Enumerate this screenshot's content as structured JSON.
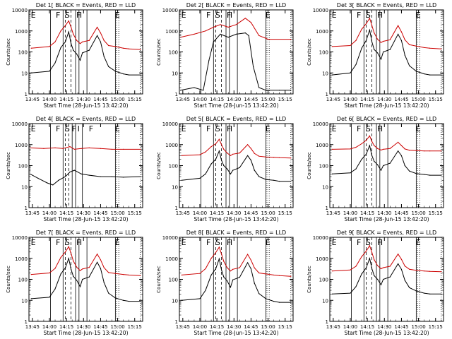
{
  "figure": {
    "xlabel": "Start Time (28-Jun-15 13:42:20)",
    "ylabel": "Counts/sec",
    "xticks": [
      "13:45",
      "14:00",
      "14:15",
      "14:30",
      "14:45",
      "15:00",
      "15:15"
    ],
    "yticks": [
      "1",
      "10",
      "100",
      "1000",
      "10000"
    ]
  },
  "chart_data": [
    {
      "type": "line",
      "title": "Det 1[ BLACK = Events, RED = LLD",
      "xlabel": "Start Time (28-Jun-15 13:42:20)",
      "ylabel": "Counts/sec",
      "yscale": "log",
      "ylim": [
        1,
        10000
      ],
      "xlim": [
        "13:42",
        "15:22"
      ],
      "interval_labels": [
        "E",
        "F",
        "S",
        "F",
        "I",
        "E"
      ],
      "series": [
        {
          "color": "#000000",
          "x": [
            "13:44",
            "14:00",
            "14:05",
            "14:10",
            "14:14",
            "14:17",
            "14:19",
            "14:21",
            "14:24",
            "14:27",
            "14:29",
            "14:35",
            "14:42",
            "14:45",
            "14:48",
            "14:52",
            "14:58",
            "15:05",
            "15:10",
            "15:20"
          ],
          "values": [
            10,
            12,
            30,
            160,
            300,
            900,
            250,
            120,
            80,
            40,
            90,
            120,
            600,
            300,
            60,
            20,
            12,
            9,
            8,
            8
          ]
        },
        {
          "color": "#cc0000",
          "x": [
            "13:44",
            "14:00",
            "14:05",
            "14:10",
            "14:14",
            "14:17",
            "14:19",
            "14:21",
            "14:24",
            "14:27",
            "14:29",
            "14:35",
            "14:42",
            "14:45",
            "14:48",
            "14:52",
            "14:58",
            "15:05",
            "15:10",
            "15:20"
          ],
          "values": [
            150,
            180,
            300,
            1000,
            1800,
            3000,
            1500,
            700,
            350,
            250,
            300,
            350,
            1500,
            800,
            350,
            200,
            180,
            150,
            140,
            130
          ]
        }
      ]
    },
    {
      "type": "line",
      "title": "Det 2[ BLACK = Events, RED = LLD",
      "xlabel": "Start Time (28-Jun-15 13:42:20)",
      "ylabel": "Counts/sec",
      "yscale": "log",
      "ylim": [
        1,
        10000
      ],
      "xlim": [
        "13:42",
        "15:22"
      ],
      "interval_labels": [
        "E",
        "F",
        "S",
        "F",
        "I",
        "E"
      ],
      "series": [
        {
          "color": "#000000",
          "x": [
            "13:43",
            "13:55",
            "14:03",
            "14:08",
            "14:12",
            "14:18",
            "14:25",
            "14:32",
            "14:40",
            "14:43",
            "14:47",
            "14:52",
            "14:58",
            "15:10",
            "15:20"
          ],
          "values": [
            1.5,
            2,
            1.5,
            40,
            300,
            700,
            500,
            700,
            800,
            600,
            20,
            2,
            1.5,
            1.5,
            1.5
          ]
        },
        {
          "color": "#cc0000",
          "x": [
            "13:43",
            "13:55",
            "14:05",
            "14:12",
            "14:18",
            "14:25",
            "14:32",
            "14:40",
            "14:45",
            "14:52",
            "15:00",
            "15:20"
          ],
          "values": [
            500,
            700,
            1000,
            1500,
            2000,
            1500,
            2000,
            4000,
            2500,
            600,
            400,
            400
          ]
        }
      ]
    },
    {
      "type": "line",
      "title": "Det 3[ BLACK = Events, RED = LLD",
      "xlabel": "Start Time (28-Jun-15 13:42:20)",
      "ylabel": "Counts/sec",
      "yscale": "log",
      "ylim": [
        1,
        10000
      ],
      "xlim": [
        "13:42",
        "15:22"
      ],
      "interval_labels": [
        "E",
        "F",
        "S",
        "F",
        "I",
        "E"
      ],
      "series": [
        {
          "color": "#000000",
          "x": [
            "13:44",
            "14:00",
            "14:05",
            "14:10",
            "14:14",
            "14:17",
            "14:19",
            "14:21",
            "14:24",
            "14:27",
            "14:29",
            "14:35",
            "14:42",
            "14:45",
            "14:48",
            "14:52",
            "14:58",
            "15:05",
            "15:10",
            "15:20"
          ],
          "values": [
            8,
            10,
            25,
            150,
            350,
            1100,
            300,
            130,
            90,
            45,
            100,
            130,
            700,
            350,
            70,
            22,
            12,
            9,
            8,
            8
          ]
        },
        {
          "color": "#cc0000",
          "x": [
            "13:44",
            "14:00",
            "14:05",
            "14:10",
            "14:14",
            "14:17",
            "14:19",
            "14:21",
            "14:24",
            "14:27",
            "14:29",
            "14:35",
            "14:42",
            "14:45",
            "14:48",
            "14:52",
            "14:58",
            "15:05",
            "15:10",
            "15:20"
          ],
          "values": [
            180,
            200,
            350,
            1200,
            2200,
            4000,
            1800,
            800,
            400,
            280,
            320,
            380,
            1800,
            900,
            380,
            220,
            190,
            160,
            150,
            140
          ]
        }
      ]
    },
    {
      "type": "line",
      "title": "Det 4[ BLACK = Events, RED = LLD",
      "xlabel": "Start Time (28-Jun-15 13:42:20)",
      "ylabel": "Counts/sec",
      "yscale": "log",
      "ylim": [
        1,
        10000
      ],
      "xlim": [
        "13:42",
        "15:22"
      ],
      "interval_labels": [
        "E",
        "F",
        "S",
        "F",
        "I",
        "F",
        "E"
      ],
      "series": [
        {
          "color": "#000000",
          "x": [
            "13:43",
            "13:50",
            "13:58",
            "14:03",
            "14:08",
            "14:14",
            "14:18",
            "14:22",
            "14:28",
            "14:35",
            "14:45",
            "14:55",
            "15:05",
            "15:20"
          ],
          "values": [
            40,
            25,
            15,
            12,
            20,
            30,
            50,
            60,
            40,
            35,
            30,
            30,
            28,
            30
          ]
        },
        {
          "color": "#cc0000",
          "x": [
            "13:43",
            "13:55",
            "14:05",
            "14:12",
            "14:18",
            "14:22",
            "14:28",
            "14:35",
            "14:45",
            "14:55",
            "15:05",
            "15:20"
          ],
          "values": [
            700,
            650,
            700,
            650,
            800,
            600,
            650,
            700,
            650,
            600,
            600,
            600
          ]
        }
      ]
    },
    {
      "type": "line",
      "title": "Det 5[ BLACK = Events, RED = LLD",
      "xlabel": "Start Time (28-Jun-15 13:42:20)",
      "ylabel": "Counts/sec",
      "yscale": "log",
      "ylim": [
        1,
        10000
      ],
      "xlim": [
        "13:42",
        "15:22"
      ],
      "interval_labels": [
        "E",
        "F",
        "S",
        "F",
        "I",
        "E"
      ],
      "series": [
        {
          "color": "#000000",
          "x": [
            "13:44",
            "14:00",
            "14:05",
            "14:10",
            "14:14",
            "14:17",
            "14:19",
            "14:21",
            "14:24",
            "14:27",
            "14:29",
            "14:35",
            "14:42",
            "14:45",
            "14:48",
            "14:52",
            "14:58",
            "15:05",
            "15:10",
            "15:20"
          ],
          "values": [
            20,
            25,
            40,
            120,
            200,
            500,
            180,
            100,
            70,
            40,
            60,
            80,
            300,
            180,
            60,
            30,
            22,
            20,
            18,
            18
          ]
        },
        {
          "color": "#cc0000",
          "x": [
            "13:44",
            "14:00",
            "14:05",
            "14:10",
            "14:14",
            "14:17",
            "14:19",
            "14:21",
            "14:24",
            "14:27",
            "14:29",
            "14:35",
            "14:42",
            "14:45",
            "14:48",
            "14:52",
            "14:58",
            "15:05",
            "15:10",
            "15:20"
          ],
          "values": [
            300,
            330,
            450,
            800,
            1100,
            1800,
            1000,
            600,
            400,
            300,
            350,
            400,
            1000,
            650,
            380,
            280,
            260,
            250,
            240,
            230
          ]
        }
      ]
    },
    {
      "type": "line",
      "title": "Det 6[ BLACK = Events, RED = LLD",
      "xlabel": "Start Time (28-Jun-15 13:42:20)",
      "ylabel": "Counts/sec",
      "yscale": "log",
      "ylim": [
        1,
        10000
      ],
      "xlim": [
        "13:42",
        "15:22"
      ],
      "interval_labels": [
        "E",
        "F",
        "S",
        "F",
        "I",
        "E"
      ],
      "series": [
        {
          "color": "#000000",
          "x": [
            "13:44",
            "14:00",
            "14:05",
            "14:10",
            "14:14",
            "14:17",
            "14:19",
            "14:21",
            "14:24",
            "14:27",
            "14:29",
            "14:35",
            "14:42",
            "14:45",
            "14:48",
            "14:52",
            "14:58",
            "15:05",
            "15:10",
            "15:20"
          ],
          "values": [
            40,
            45,
            70,
            200,
            350,
            900,
            300,
            160,
            110,
            60,
            100,
            130,
            500,
            300,
            100,
            55,
            42,
            38,
            35,
            35
          ]
        },
        {
          "color": "#cc0000",
          "x": [
            "13:44",
            "14:00",
            "14:05",
            "14:10",
            "14:14",
            "14:17",
            "14:19",
            "14:21",
            "14:24",
            "14:27",
            "14:29",
            "14:35",
            "14:42",
            "14:45",
            "14:48",
            "14:52",
            "14:58",
            "15:05",
            "15:10",
            "15:20"
          ],
          "values": [
            600,
            620,
            750,
            1100,
            1600,
            2600,
            1400,
            900,
            650,
            550,
            600,
            650,
            1300,
            900,
            620,
            540,
            520,
            500,
            500,
            500
          ]
        }
      ]
    },
    {
      "type": "line",
      "title": "Det 7[ BLACK = Events, RED = LLD",
      "xlabel": "Start Time (28-Jun-15 13:42:20)",
      "ylabel": "Counts/sec",
      "yscale": "log",
      "ylim": [
        1,
        10000
      ],
      "xlim": [
        "13:42",
        "15:22"
      ],
      "interval_labels": [
        "E",
        "F",
        "S",
        "F",
        "I",
        "E"
      ],
      "series": [
        {
          "color": "#000000",
          "x": [
            "13:44",
            "14:00",
            "14:05",
            "14:10",
            "14:14",
            "14:17",
            "14:19",
            "14:21",
            "14:24",
            "14:27",
            "14:29",
            "14:35",
            "14:42",
            "14:45",
            "14:48",
            "14:52",
            "14:58",
            "15:05",
            "15:10",
            "15:20"
          ],
          "values": [
            12,
            14,
            35,
            180,
            350,
            1000,
            300,
            140,
            90,
            45,
            100,
            130,
            650,
            330,
            70,
            22,
            13,
            10,
            9,
            9
          ]
        },
        {
          "color": "#cc0000",
          "x": [
            "13:44",
            "14:00",
            "14:05",
            "14:10",
            "14:14",
            "14:17",
            "14:19",
            "14:21",
            "14:24",
            "14:27",
            "14:29",
            "14:35",
            "14:42",
            "14:45",
            "14:48",
            "14:52",
            "14:58",
            "15:05",
            "15:10",
            "15:20"
          ],
          "values": [
            170,
            200,
            330,
            1100,
            2000,
            3600,
            1700,
            750,
            380,
            260,
            310,
            370,
            1600,
            850,
            360,
            210,
            190,
            170,
            160,
            150
          ]
        }
      ]
    },
    {
      "type": "line",
      "title": "Det 8[ BLACK = Events, RED = LLD",
      "xlabel": "Start Time (28-Jun-15 13:42:20)",
      "ylabel": "Counts/sec",
      "yscale": "log",
      "ylim": [
        1,
        10000
      ],
      "xlim": [
        "13:42",
        "15:22"
      ],
      "interval_labels": [
        "E",
        "F",
        "S",
        "F",
        "I",
        "E"
      ],
      "series": [
        {
          "color": "#000000",
          "x": [
            "13:44",
            "14:00",
            "14:05",
            "14:10",
            "14:14",
            "14:17",
            "14:19",
            "14:21",
            "14:24",
            "14:27",
            "14:29",
            "14:35",
            "14:42",
            "14:45",
            "14:48",
            "14:52",
            "14:58",
            "15:05",
            "15:10",
            "15:20"
          ],
          "values": [
            10,
            12,
            30,
            160,
            320,
            950,
            280,
            130,
            85,
            42,
            95,
            125,
            620,
            320,
            65,
            21,
            12,
            9,
            8,
            8
          ]
        },
        {
          "color": "#cc0000",
          "x": [
            "13:44",
            "14:00",
            "14:05",
            "14:10",
            "14:14",
            "14:17",
            "14:19",
            "14:21",
            "14:24",
            "14:27",
            "14:29",
            "14:35",
            "14:42",
            "14:45",
            "14:48",
            "14:52",
            "14:58",
            "15:05",
            "15:10",
            "15:20"
          ],
          "values": [
            160,
            190,
            320,
            1000,
            1900,
            3400,
            1600,
            720,
            360,
            250,
            300,
            360,
            1550,
            820,
            350,
            200,
            180,
            160,
            150,
            140
          ]
        }
      ]
    },
    {
      "type": "line",
      "title": "Det 9[ BLACK = Events, RED = LLD",
      "xlabel": "Start Time (28-Jun-15 13:42:20)",
      "ylabel": "Counts/sec",
      "yscale": "log",
      "ylim": [
        1,
        10000
      ],
      "xlim": [
        "13:42",
        "15:22"
      ],
      "interval_labels": [
        "E",
        "F",
        "S",
        "F",
        "I",
        "E"
      ],
      "series": [
        {
          "color": "#000000",
          "x": [
            "13:44",
            "14:00",
            "14:05",
            "14:10",
            "14:14",
            "14:17",
            "14:19",
            "14:21",
            "14:24",
            "14:27",
            "14:29",
            "14:35",
            "14:42",
            "14:45",
            "14:48",
            "14:52",
            "14:58",
            "15:05",
            "15:10",
            "15:20"
          ],
          "values": [
            20,
            22,
            45,
            180,
            350,
            1000,
            320,
            150,
            100,
            55,
            100,
            130,
            550,
            300,
            90,
            40,
            28,
            22,
            20,
            20
          ]
        },
        {
          "color": "#cc0000",
          "x": [
            "13:44",
            "14:00",
            "14:05",
            "14:10",
            "14:14",
            "14:17",
            "14:19",
            "14:21",
            "14:24",
            "14:27",
            "14:29",
            "14:35",
            "14:42",
            "14:45",
            "14:48",
            "14:52",
            "14:58",
            "15:05",
            "15:10",
            "15:20"
          ],
          "values": [
            250,
            280,
            420,
            1200,
            2200,
            4000,
            1900,
            850,
            450,
            320,
            360,
            420,
            1600,
            900,
            430,
            300,
            270,
            250,
            240,
            230
          ]
        }
      ]
    }
  ]
}
